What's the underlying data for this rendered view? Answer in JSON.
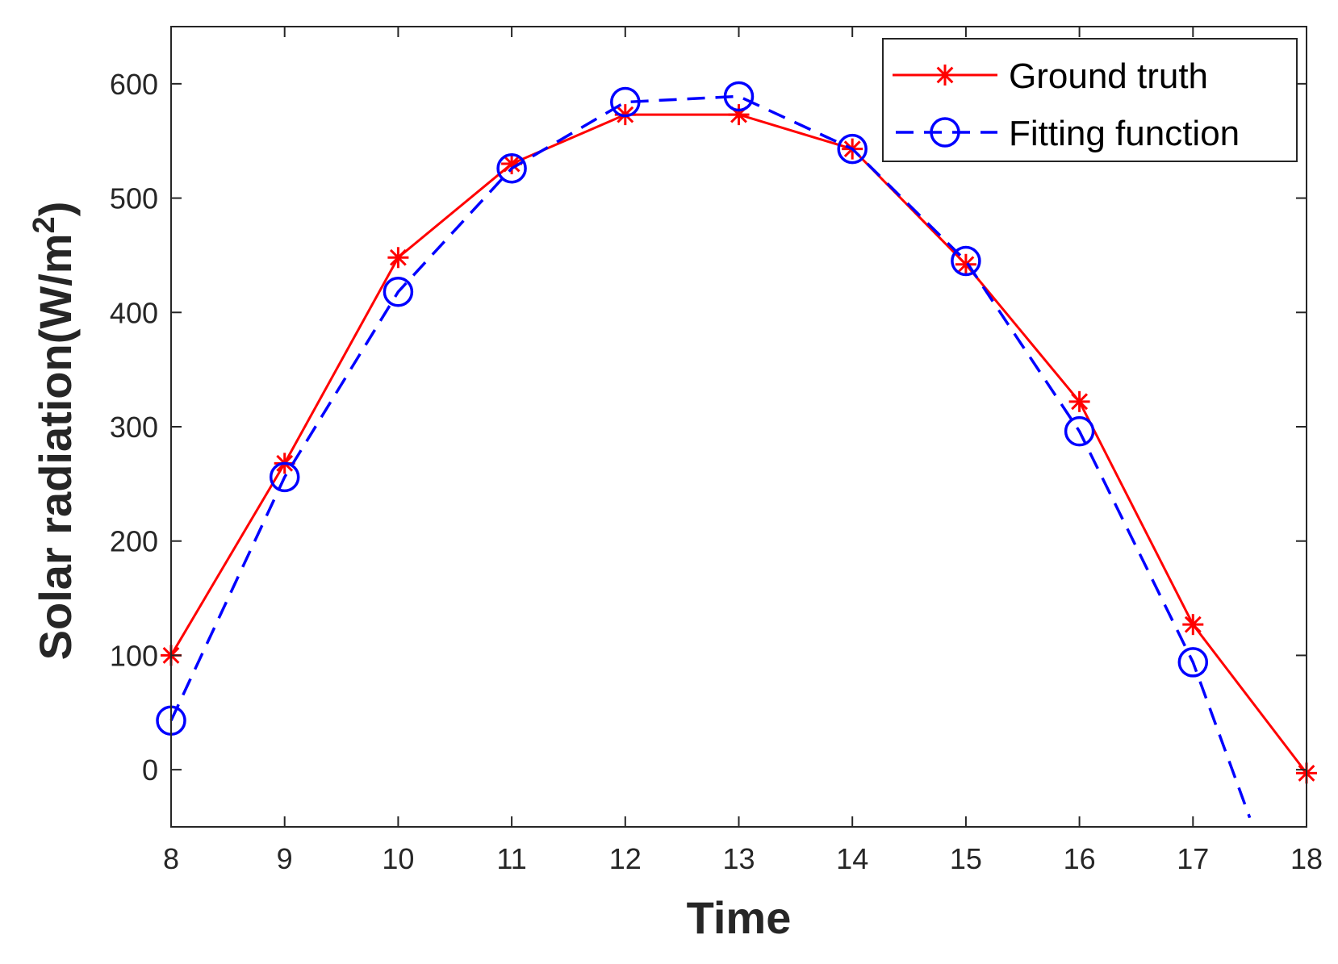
{
  "chart_data": {
    "type": "line",
    "title": "",
    "xlabel": "Time",
    "ylabel": {
      "main": "Solar radiation(W/m",
      "superscript": "2",
      "close": ")"
    },
    "xlim": [
      8,
      18
    ],
    "ylim": [
      -50,
      650
    ],
    "xticks": [
      8,
      9,
      10,
      11,
      12,
      13,
      14,
      15,
      16,
      17,
      18
    ],
    "yticks": [
      0,
      100,
      200,
      300,
      400,
      500,
      600
    ],
    "legend_position": "top-right",
    "series": [
      {
        "name": "Ground truth",
        "color": "#ff0000",
        "line_style": "solid",
        "marker": "asterisk",
        "x": [
          8,
          9,
          10,
          11,
          12,
          13,
          14,
          15,
          16,
          17,
          18
        ],
        "y": [
          100,
          268,
          448,
          530,
          573,
          573,
          543,
          442,
          322,
          127,
          -3
        ]
      },
      {
        "name": "Fitting function",
        "color": "#0000ff",
        "line_style": "dashed",
        "marker": "circle",
        "x": [
          8,
          9,
          10,
          11,
          12,
          13,
          14,
          15,
          16,
          17,
          17.5
        ],
        "y": [
          43,
          256,
          418,
          526,
          584,
          589,
          543,
          445,
          296,
          94,
          -42
        ],
        "marker_x": [
          8,
          9,
          10,
          11,
          12,
          13,
          14,
          15,
          16,
          17
        ]
      }
    ]
  }
}
